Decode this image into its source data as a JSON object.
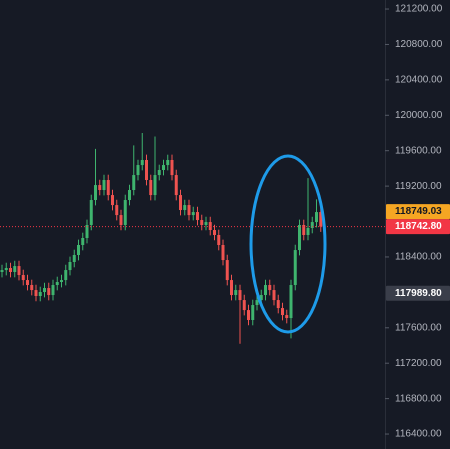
{
  "chart_data": {
    "type": "candlestick",
    "up_color": "#3fb46e",
    "down_color": "#ef5350",
    "ylim": [
      116231,
      121302
    ],
    "yticks": [
      {
        "value": 121200,
        "label": "121200.00"
      },
      {
        "value": 120800,
        "label": "120800.00"
      },
      {
        "value": 120400,
        "label": "120400.00"
      },
      {
        "value": 120000,
        "label": "120000.00"
      },
      {
        "value": 119600,
        "label": "119600.00"
      },
      {
        "value": 119200,
        "label": "119200.00"
      },
      {
        "value": 118400,
        "label": "118400.00"
      },
      {
        "value": 117600,
        "label": "117600.00"
      },
      {
        "value": 117200,
        "label": "117200.00"
      },
      {
        "value": 116800,
        "label": "116800.00"
      },
      {
        "value": 116400,
        "label": "116400.00"
      }
    ],
    "grid": false,
    "series": {
      "open": [
        118230,
        118252,
        118275,
        118230,
        118297,
        118196,
        118139,
        118083,
        118026,
        117959,
        118004,
        118049,
        117970,
        118083,
        118117,
        118139,
        118252,
        118343,
        118422,
        118535,
        118614,
        118761,
        119043,
        119212,
        119156,
        119269,
        119099,
        118986,
        118873,
        118761,
        119043,
        119156,
        119325,
        119438,
        119495,
        119269,
        119099,
        119325,
        119382,
        119438,
        119495,
        119325,
        119099,
        118930,
        118986,
        118873,
        118907,
        118817,
        118761,
        118794,
        118704,
        118648,
        118535,
        118365,
        118139,
        117970,
        118026,
        117913,
        117800,
        117688,
        117857,
        117913,
        117970,
        118083,
        118026,
        117913,
        117823,
        117744,
        117710,
        118083,
        118478,
        118761,
        118648,
        118727,
        118794,
        118907
      ],
      "high": [
        118312,
        118335,
        118335,
        118357,
        118357,
        118256,
        118199,
        118143,
        118086,
        118064,
        118109,
        118109,
        118143,
        118177,
        118199,
        118312,
        118403,
        118482,
        118595,
        118674,
        118821,
        119103,
        119620,
        119272,
        119329,
        119329,
        119159,
        119046,
        118933,
        119103,
        119216,
        119660,
        119498,
        119800,
        119555,
        119329,
        119760,
        119442,
        119498,
        119555,
        119555,
        119385,
        119159,
        119046,
        119046,
        118967,
        118967,
        118877,
        118854,
        118854,
        118764,
        118708,
        118595,
        118425,
        118199,
        118086,
        118086,
        117973,
        117860,
        117917,
        117973,
        118030,
        118143,
        118143,
        118086,
        117973,
        117883,
        117804,
        118143,
        118538,
        118821,
        118821,
        119290,
        118854,
        119050,
        118967
      ],
      "low": [
        118170,
        118192,
        118170,
        118170,
        118136,
        118079,
        118023,
        117966,
        117899,
        117899,
        117944,
        117910,
        117910,
        118023,
        118057,
        118079,
        118192,
        118283,
        118362,
        118475,
        118554,
        118701,
        118983,
        119096,
        119096,
        119039,
        118926,
        118813,
        118701,
        118701,
        118983,
        119096,
        119265,
        119378,
        119209,
        119039,
        119039,
        119265,
        119322,
        119378,
        119265,
        119039,
        118870,
        118870,
        118813,
        118813,
        118757,
        118701,
        118701,
        118644,
        118588,
        118475,
        118305,
        118079,
        117910,
        117910,
        117420,
        117740,
        117628,
        117628,
        117797,
        117853,
        117910,
        117966,
        117853,
        117763,
        117684,
        117650,
        117480,
        118023,
        118418,
        118588,
        118588,
        118667,
        118734,
        118683
      ],
      "close": [
        118252,
        118275,
        118230,
        118297,
        118196,
        118139,
        118083,
        118026,
        117959,
        118004,
        118049,
        117970,
        118083,
        118117,
        118139,
        118252,
        118343,
        118422,
        118535,
        118614,
        118761,
        119043,
        119212,
        119156,
        119269,
        119099,
        118986,
        118873,
        118761,
        119043,
        119156,
        119325,
        119438,
        119495,
        119269,
        119099,
        119325,
        119382,
        119438,
        119495,
        119325,
        119099,
        118930,
        118986,
        118873,
        118907,
        118817,
        118761,
        118794,
        118704,
        118648,
        118535,
        118365,
        118139,
        117970,
        118026,
        117913,
        117800,
        117688,
        117857,
        117913,
        117970,
        118083,
        118026,
        117913,
        117823,
        117744,
        117710,
        118083,
        118478,
        118761,
        118648,
        118727,
        118794,
        118907,
        118743
      ]
    },
    "price_labels": [
      {
        "value": 118749.03,
        "label": "118749.03",
        "color": "#f5a623",
        "text_color": "#131722"
      },
      {
        "value": 118742.8,
        "label": "118742.80",
        "color": "#f23645",
        "text_color": "#ffffff",
        "line": true
      },
      {
        "value": 117989.8,
        "label": "117989.80",
        "color": "#3a3e4a",
        "text_color": "#ffffff"
      }
    ]
  }
}
